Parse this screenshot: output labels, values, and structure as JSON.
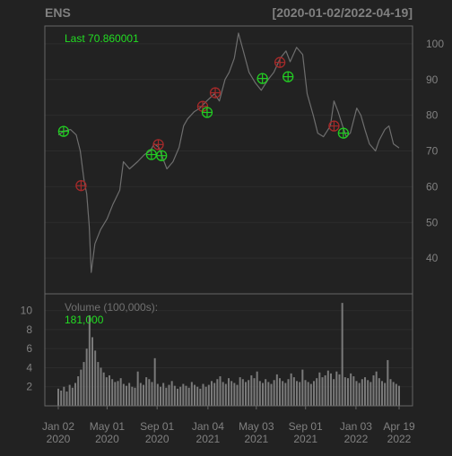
{
  "colors": {
    "background": "#222222",
    "panel_border": "#666666",
    "grid": "#2c2c2c",
    "axis_text": "#808080",
    "title_text": "#808080",
    "price_line": "#6e6e6e",
    "volume_bar": "#7a7a7a",
    "buy_marker": "#22cc22",
    "sell_marker": "#a52a2a",
    "last_label": "#22dd22",
    "volume_value": "#22dd22"
  },
  "header": {
    "symbol": "ENS",
    "date_range": "[2020-01-02/2022-04-19]"
  },
  "chart_data": [
    {
      "type": "line",
      "panel": "price",
      "label": "Last 70.860001",
      "x_range": [
        "2020-01-02",
        "2022-04-19"
      ],
      "ylim": [
        30,
        105
      ],
      "yticks": [
        40,
        50,
        60,
        70,
        80,
        90,
        100
      ],
      "grid": true,
      "series": [
        {
          "points": [
            [
              "2020-01-02",
              74.5
            ],
            [
              "2020-01-15",
              75.5
            ],
            [
              "2020-02-01",
              76.0
            ],
            [
              "2020-02-15",
              74.5
            ],
            [
              "2020-02-25",
              70.0
            ],
            [
              "2020-03-05",
              62.0
            ],
            [
              "2020-03-12",
              58.0
            ],
            [
              "2020-03-18",
              49.0
            ],
            [
              "2020-03-23",
              36.0
            ],
            [
              "2020-04-01",
              44.0
            ],
            [
              "2020-04-15",
              48.0
            ],
            [
              "2020-05-01",
              51.0
            ],
            [
              "2020-05-15",
              55.0
            ],
            [
              "2020-06-01",
              59.0
            ],
            [
              "2020-06-10",
              67.0
            ],
            [
              "2020-06-25",
              65.0
            ],
            [
              "2020-07-15",
              67.0
            ],
            [
              "2020-08-01",
              69.0
            ],
            [
              "2020-08-15",
              70.0
            ],
            [
              "2020-08-25",
              72.0
            ],
            [
              "2020-09-05",
              71.0
            ],
            [
              "2020-09-15",
              68.0
            ],
            [
              "2020-09-25",
              65.0
            ],
            [
              "2020-10-10",
              67.0
            ],
            [
              "2020-10-25",
              71.0
            ],
            [
              "2020-11-05",
              77.0
            ],
            [
              "2020-11-15",
              79.0
            ],
            [
              "2020-12-01",
              81.0
            ],
            [
              "2020-12-15",
              82.0
            ],
            [
              "2021-01-01",
              84.0
            ],
            [
              "2021-01-20",
              86.0
            ],
            [
              "2021-02-01",
              84.0
            ],
            [
              "2021-02-15",
              90.0
            ],
            [
              "2021-02-25",
              92.0
            ],
            [
              "2021-03-10",
              96.0
            ],
            [
              "2021-03-20",
              103.0
            ],
            [
              "2021-04-01",
              98.0
            ],
            [
              "2021-04-15",
              92.0
            ],
            [
              "2021-05-01",
              89.0
            ],
            [
              "2021-05-15",
              87.0
            ],
            [
              "2021-06-01",
              90.0
            ],
            [
              "2021-06-15",
              92.0
            ],
            [
              "2021-07-01",
              96.0
            ],
            [
              "2021-07-15",
              98.0
            ],
            [
              "2021-07-25",
              95.0
            ],
            [
              "2021-08-10",
              99.0
            ],
            [
              "2021-08-25",
              97.0
            ],
            [
              "2021-09-05",
              86.0
            ],
            [
              "2021-09-20",
              80.0
            ],
            [
              "2021-10-01",
              75.0
            ],
            [
              "2021-10-15",
              74.0
            ],
            [
              "2021-11-01",
              77.0
            ],
            [
              "2021-11-10",
              84.0
            ],
            [
              "2021-11-20",
              81.0
            ],
            [
              "2021-12-01",
              77.0
            ],
            [
              "2021-12-10",
              74.0
            ],
            [
              "2021-12-20",
              75.0
            ],
            [
              "2022-01-05",
              82.0
            ],
            [
              "2022-01-15",
              80.0
            ],
            [
              "2022-01-25",
              76.0
            ],
            [
              "2022-02-05",
              72.0
            ],
            [
              "2022-02-20",
              70.0
            ],
            [
              "2022-03-01",
              73.0
            ],
            [
              "2022-03-15",
              76.0
            ],
            [
              "2022-03-25",
              77.0
            ],
            [
              "2022-04-05",
              72.0
            ],
            [
              "2022-04-19",
              70.86
            ]
          ]
        }
      ],
      "markers": [
        {
          "date": "2020-01-15",
          "price": 75.5,
          "kind": "buy"
        },
        {
          "date": "2020-02-27",
          "price": 60.3,
          "kind": "sell"
        },
        {
          "date": "2020-08-18",
          "price": 69.0,
          "kind": "buy"
        },
        {
          "date": "2020-09-04",
          "price": 71.8,
          "kind": "sell"
        },
        {
          "date": "2020-09-12",
          "price": 68.7,
          "kind": "buy"
        },
        {
          "date": "2020-12-22",
          "price": 82.5,
          "kind": "sell"
        },
        {
          "date": "2021-01-02",
          "price": 80.8,
          "kind": "buy"
        },
        {
          "date": "2021-01-22",
          "price": 86.3,
          "kind": "sell"
        },
        {
          "date": "2021-05-18",
          "price": 90.3,
          "kind": "buy"
        },
        {
          "date": "2021-06-30",
          "price": 94.8,
          "kind": "sell"
        },
        {
          "date": "2021-07-20",
          "price": 90.8,
          "kind": "buy"
        },
        {
          "date": "2021-11-10",
          "price": 77.0,
          "kind": "sell"
        },
        {
          "date": "2021-12-03",
          "price": 75.0,
          "kind": "buy"
        }
      ]
    },
    {
      "type": "bar",
      "panel": "volume",
      "label": "Volume (100,000s):",
      "value_label": "181,000",
      "ylim": [
        0,
        11
      ],
      "yticks": [
        2,
        4,
        6,
        8,
        10
      ],
      "grid": true,
      "xticks": [
        {
          "date": "2020-01-02",
          "month": "Jan 02",
          "year": "2020"
        },
        {
          "date": "2020-05-01",
          "month": "May 01",
          "year": "2020"
        },
        {
          "date": "2020-09-01",
          "month": "Sep 01",
          "year": "2020"
        },
        {
          "date": "2021-01-04",
          "month": "Jan 04",
          "year": "2021"
        },
        {
          "date": "2021-05-03",
          "month": "May 03",
          "year": "2021"
        },
        {
          "date": "2021-09-01",
          "month": "Sep 01",
          "year": "2021"
        },
        {
          "date": "2022-01-03",
          "month": "Jan 03",
          "year": "2022"
        },
        {
          "date": "2022-04-19",
          "month": "Apr 19",
          "year": "2022"
        }
      ],
      "values_weekly": [
        1.8,
        1.6,
        2.0,
        1.5,
        2.2,
        1.9,
        2.4,
        3.1,
        3.8,
        4.6,
        6.0,
        9.5,
        7.2,
        5.8,
        4.6,
        4.0,
        3.5,
        3.0,
        3.2,
        2.8,
        2.5,
        2.6,
        2.9,
        2.3,
        2.1,
        2.4,
        2.0,
        1.9,
        3.6,
        2.4,
        2.2,
        3.0,
        2.8,
        2.5,
        5.0,
        2.3,
        2.0,
        2.4,
        1.9,
        2.2,
        2.6,
        2.1,
        1.8,
        2.0,
        2.3,
        2.1,
        1.9,
        2.5,
        2.2,
        2.0,
        1.8,
        2.3,
        2.0,
        2.2,
        2.6,
        2.4,
        2.8,
        3.1,
        2.5,
        2.3,
        2.9,
        2.6,
        2.4,
        2.2,
        3.0,
        2.8,
        2.5,
        2.7,
        3.2,
        2.9,
        3.6,
        2.6,
        2.4,
        2.8,
        2.5,
        2.3,
        2.7,
        3.3,
        2.9,
        2.6,
        2.4,
        2.8,
        3.4,
        3.0,
        2.6,
        2.5,
        3.8,
        2.7,
        2.5,
        2.3,
        2.6,
        2.9,
        3.5,
        3.0,
        3.2,
        3.7,
        3.4,
        2.8,
        3.6,
        3.3,
        10.8,
        3.0,
        2.9,
        3.4,
        3.1,
        2.6,
        2.4,
        2.8,
        3.0,
        2.7,
        2.5,
        3.2,
        3.6,
        2.9,
        2.6,
        2.4,
        4.8,
        2.8,
        2.5,
        2.3,
        2.1
      ]
    }
  ]
}
